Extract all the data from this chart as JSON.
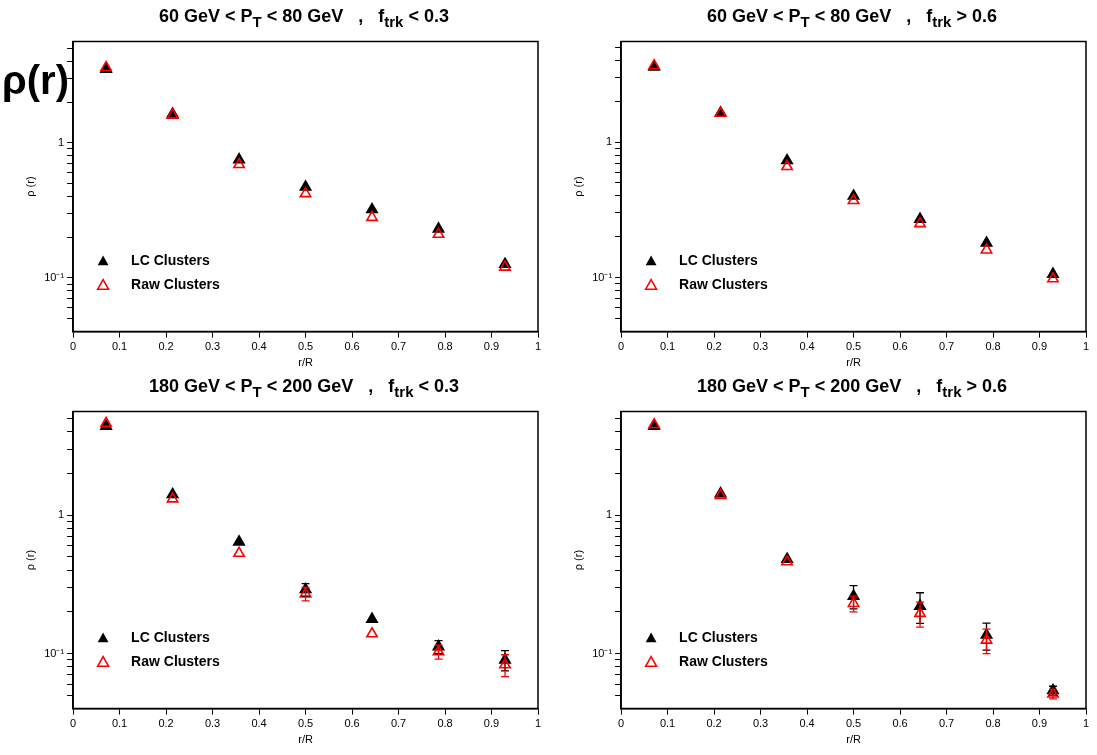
{
  "chart_data": [
    {
      "type": "scatter",
      "title": "60 GeV < P$_{T}$ < 80 GeV   ,   f$_{trk}$ < 0.3",
      "xlabel": "r/R",
      "ylabel": "ρ (r)",
      "annotations": [
        "ρ(r)"
      ],
      "log": "y",
      "marker": "triangle",
      "legend": "bottom left",
      "grid": false,
      "x": [
        0.071,
        0.214,
        0.357,
        0.5,
        0.643,
        0.786,
        0.929
      ],
      "xlim": [
        0,
        1
      ],
      "xticks": [
        0,
        0.1,
        0.2,
        0.3,
        0.4,
        0.5,
        0.6,
        0.7,
        0.8,
        0.9,
        1
      ],
      "ylim": [
        0.04,
        5.6
      ],
      "yticks": [
        {
          "value": 0.05,
          "label": null
        },
        {
          "value": 0.06,
          "label": null
        },
        {
          "value": 0.07,
          "label": null
        },
        {
          "value": 0.08,
          "label": null
        },
        {
          "value": 0.09,
          "label": null
        },
        {
          "value": 0.1,
          "label": "10⁻¹"
        },
        {
          "value": 0.2,
          "label": null
        },
        {
          "value": 0.3,
          "label": null
        },
        {
          "value": 0.4,
          "label": null
        },
        {
          "value": 0.5,
          "label": null
        },
        {
          "value": 0.6,
          "label": null
        },
        {
          "value": 0.7,
          "label": null
        },
        {
          "value": 0.8,
          "label": null
        },
        {
          "value": 0.9,
          "label": null
        },
        {
          "value": 1,
          "label": "1"
        },
        {
          "value": 2,
          "label": null
        },
        {
          "value": 3,
          "label": null
        },
        {
          "value": 4,
          "label": null
        },
        {
          "value": 5,
          "label": null
        }
      ],
      "series": [
        {
          "name": "LC Clusters",
          "color": "#000000",
          "values": [
            3.5,
            1.63,
            0.75,
            0.47,
            0.32,
            0.23,
            0.126
          ]
        },
        {
          "name": "Raw Clusters",
          "color": "#ff0000",
          "values": [
            3.6,
            1.6,
            0.69,
            0.42,
            0.28,
            0.21,
            0.12
          ]
        }
      ]
    },
    {
      "type": "scatter",
      "title": "60 GeV < P$_{T}$ < 80 GeV   ,   f$_{trk}$ > 0.6",
      "xlabel": "r/R",
      "ylabel": "ρ (r)",
      "log": "y",
      "marker": "triangle",
      "legend": "bottom left",
      "grid": false,
      "x": [
        0.071,
        0.214,
        0.357,
        0.5,
        0.643,
        0.786,
        0.929
      ],
      "xlim": [
        0,
        1
      ],
      "xticks": [
        0,
        0.1,
        0.2,
        0.3,
        0.4,
        0.5,
        0.6,
        0.7,
        0.8,
        0.9,
        1
      ],
      "ylim": [
        0.04,
        5.5
      ],
      "yticks": [
        {
          "value": 0.05,
          "label": null
        },
        {
          "value": 0.06,
          "label": null
        },
        {
          "value": 0.07,
          "label": null
        },
        {
          "value": 0.08,
          "label": null
        },
        {
          "value": 0.09,
          "label": null
        },
        {
          "value": 0.1,
          "label": "10⁻¹"
        },
        {
          "value": 0.2,
          "label": null
        },
        {
          "value": 0.3,
          "label": null
        },
        {
          "value": 0.4,
          "label": null
        },
        {
          "value": 0.5,
          "label": null
        },
        {
          "value": 0.6,
          "label": null
        },
        {
          "value": 0.7,
          "label": null
        },
        {
          "value": 0.8,
          "label": null
        },
        {
          "value": 0.9,
          "label": null
        },
        {
          "value": 1,
          "label": "1"
        },
        {
          "value": 2,
          "label": null
        },
        {
          "value": 3,
          "label": null
        },
        {
          "value": 4,
          "label": null
        },
        {
          "value": 5,
          "label": null
        }
      ],
      "series": [
        {
          "name": "LC Clusters",
          "color": "#000000",
          "values": [
            3.57,
            1.64,
            0.73,
            0.4,
            0.27,
            0.18,
            0.106
          ]
        },
        {
          "name": "Raw Clusters",
          "color": "#ff0000",
          "values": [
            3.65,
            1.63,
            0.66,
            0.37,
            0.25,
            0.16,
            0.098
          ]
        }
      ]
    },
    {
      "type": "scatter",
      "title": "180 GeV < P$_{T}$ < 200 GeV   ,   f$_{trk}$ < 0.3",
      "xlabel": "r/R",
      "ylabel": "ρ (r)",
      "log": "y",
      "marker": "triangle",
      "legend": "bottom left",
      "grid": false,
      "x": [
        0.071,
        0.214,
        0.357,
        0.5,
        0.643,
        0.786,
        0.929
      ],
      "xlim": [
        0,
        1
      ],
      "xticks": [
        0,
        0.1,
        0.2,
        0.3,
        0.4,
        0.5,
        0.6,
        0.7,
        0.8,
        0.9,
        1
      ],
      "ylim": [
        0.04,
        5.6
      ],
      "yticks": [
        {
          "value": 0.05,
          "label": null
        },
        {
          "value": 0.06,
          "label": null
        },
        {
          "value": 0.07,
          "label": null
        },
        {
          "value": 0.08,
          "label": null
        },
        {
          "value": 0.09,
          "label": null
        },
        {
          "value": 0.1,
          "label": "10⁻¹"
        },
        {
          "value": 0.2,
          "label": null
        },
        {
          "value": 0.3,
          "label": null
        },
        {
          "value": 0.4,
          "label": null
        },
        {
          "value": 0.5,
          "label": null
        },
        {
          "value": 0.6,
          "label": null
        },
        {
          "value": 0.7,
          "label": null
        },
        {
          "value": 0.8,
          "label": null
        },
        {
          "value": 0.9,
          "label": null
        },
        1,
        {
          "value": 2,
          "label": null
        },
        {
          "value": 3,
          "label": null
        },
        {
          "value": 4,
          "label": null
        },
        {
          "value": 5,
          "label": null
        }
      ],
      "series": [
        {
          "name": "LC Clusters",
          "color": "#000000",
          "values": [
            4.4,
            1.41,
            0.64,
            0.29,
            0.177,
            0.112,
            0.09
          ],
          "errors": [
            null,
            null,
            null,
            0.03,
            null,
            0.012,
            0.015
          ]
        },
        {
          "name": "Raw Clusters",
          "color": "#ff0000",
          "values": [
            4.6,
            1.31,
            0.53,
            0.27,
            0.139,
            0.103,
            0.083
          ],
          "errors": [
            null,
            null,
            null,
            0.03,
            null,
            0.012,
            0.015
          ]
        }
      ]
    },
    {
      "type": "scatter",
      "title": "180 GeV < P$_{T}$ < 200 GeV   ,   f$_{trk}$ > 0.6",
      "xlabel": "r/R",
      "ylabel": "ρ (r)",
      "log": "y",
      "marker": "triangle",
      "legend": "bottom left",
      "grid": false,
      "x": [
        0.071,
        0.214,
        0.357,
        0.5,
        0.643,
        0.786,
        0.929
      ],
      "xlim": [
        0,
        1
      ],
      "xticks": [
        0,
        0.1,
        0.2,
        0.3,
        0.4,
        0.5,
        0.6,
        0.7,
        0.8,
        0.9,
        1
      ],
      "ylim": [
        0.04,
        5.6
      ],
      "yticks": [
        {
          "value": 0.05,
          "label": null
        },
        {
          "value": 0.06,
          "label": null
        },
        {
          "value": 0.07,
          "label": null
        },
        {
          "value": 0.08,
          "label": null
        },
        {
          "value": 0.09,
          "label": null
        },
        {
          "value": 0.1,
          "label": "10⁻¹"
        },
        {
          "value": 0.2,
          "label": null
        },
        {
          "value": 0.3,
          "label": null
        },
        {
          "value": 0.4,
          "label": null
        },
        {
          "value": 0.5,
          "label": null
        },
        {
          "value": 0.6,
          "label": null
        },
        {
          "value": 0.7,
          "label": null
        },
        {
          "value": 0.8,
          "label": null
        },
        {
          "value": 0.9,
          "label": null
        },
        1,
        {
          "value": 2,
          "label": null
        },
        {
          "value": 3,
          "label": null
        },
        {
          "value": 4,
          "label": null
        },
        {
          "value": 5,
          "label": null
        }
      ],
      "series": [
        {
          "name": "LC Clusters",
          "color": "#000000",
          "values": [
            4.4,
            1.43,
            0.48,
            0.26,
            0.22,
            0.136,
            0.054
          ],
          "errors": [
            null,
            null,
            null,
            0.05,
            0.055,
            0.03,
            0.004
          ]
        },
        {
          "name": "Raw Clusters",
          "color": "#ff0000",
          "values": [
            4.5,
            1.39,
            0.46,
            0.23,
            0.195,
            0.125,
            0.051
          ],
          "errors": [
            null,
            null,
            null,
            0.03,
            0.04,
            0.025,
            0.004
          ]
        }
      ]
    }
  ]
}
